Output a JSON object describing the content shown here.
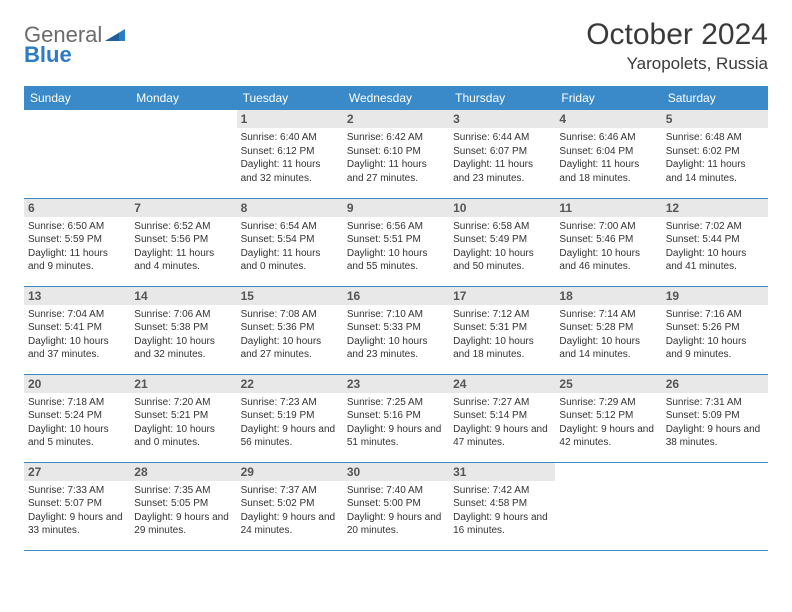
{
  "brand": {
    "part1": "General",
    "part2": "Blue"
  },
  "title": "October 2024",
  "location": "Yaropolets, Russia",
  "colors": {
    "header_bg": "#3a8ac9",
    "header_fg": "#ffffff",
    "daynum_bg": "#e8e8e8",
    "daynum_fg": "#555555",
    "text": "#333333",
    "rule": "#3a8ac9",
    "logo_gray": "#6b6b6b",
    "logo_blue": "#2b7cc4"
  },
  "weekdays": [
    "Sunday",
    "Monday",
    "Tuesday",
    "Wednesday",
    "Thursday",
    "Friday",
    "Saturday"
  ],
  "days": [
    {
      "n": 1,
      "sr": "6:40 AM",
      "ss": "6:12 PM",
      "dl": "11 hours and 32 minutes."
    },
    {
      "n": 2,
      "sr": "6:42 AM",
      "ss": "6:10 PM",
      "dl": "11 hours and 27 minutes."
    },
    {
      "n": 3,
      "sr": "6:44 AM",
      "ss": "6:07 PM",
      "dl": "11 hours and 23 minutes."
    },
    {
      "n": 4,
      "sr": "6:46 AM",
      "ss": "6:04 PM",
      "dl": "11 hours and 18 minutes."
    },
    {
      "n": 5,
      "sr": "6:48 AM",
      "ss": "6:02 PM",
      "dl": "11 hours and 14 minutes."
    },
    {
      "n": 6,
      "sr": "6:50 AM",
      "ss": "5:59 PM",
      "dl": "11 hours and 9 minutes."
    },
    {
      "n": 7,
      "sr": "6:52 AM",
      "ss": "5:56 PM",
      "dl": "11 hours and 4 minutes."
    },
    {
      "n": 8,
      "sr": "6:54 AM",
      "ss": "5:54 PM",
      "dl": "11 hours and 0 minutes."
    },
    {
      "n": 9,
      "sr": "6:56 AM",
      "ss": "5:51 PM",
      "dl": "10 hours and 55 minutes."
    },
    {
      "n": 10,
      "sr": "6:58 AM",
      "ss": "5:49 PM",
      "dl": "10 hours and 50 minutes."
    },
    {
      "n": 11,
      "sr": "7:00 AM",
      "ss": "5:46 PM",
      "dl": "10 hours and 46 minutes."
    },
    {
      "n": 12,
      "sr": "7:02 AM",
      "ss": "5:44 PM",
      "dl": "10 hours and 41 minutes."
    },
    {
      "n": 13,
      "sr": "7:04 AM",
      "ss": "5:41 PM",
      "dl": "10 hours and 37 minutes."
    },
    {
      "n": 14,
      "sr": "7:06 AM",
      "ss": "5:38 PM",
      "dl": "10 hours and 32 minutes."
    },
    {
      "n": 15,
      "sr": "7:08 AM",
      "ss": "5:36 PM",
      "dl": "10 hours and 27 minutes."
    },
    {
      "n": 16,
      "sr": "7:10 AM",
      "ss": "5:33 PM",
      "dl": "10 hours and 23 minutes."
    },
    {
      "n": 17,
      "sr": "7:12 AM",
      "ss": "5:31 PM",
      "dl": "10 hours and 18 minutes."
    },
    {
      "n": 18,
      "sr": "7:14 AM",
      "ss": "5:28 PM",
      "dl": "10 hours and 14 minutes."
    },
    {
      "n": 19,
      "sr": "7:16 AM",
      "ss": "5:26 PM",
      "dl": "10 hours and 9 minutes."
    },
    {
      "n": 20,
      "sr": "7:18 AM",
      "ss": "5:24 PM",
      "dl": "10 hours and 5 minutes."
    },
    {
      "n": 21,
      "sr": "7:20 AM",
      "ss": "5:21 PM",
      "dl": "10 hours and 0 minutes."
    },
    {
      "n": 22,
      "sr": "7:23 AM",
      "ss": "5:19 PM",
      "dl": "9 hours and 56 minutes."
    },
    {
      "n": 23,
      "sr": "7:25 AM",
      "ss": "5:16 PM",
      "dl": "9 hours and 51 minutes."
    },
    {
      "n": 24,
      "sr": "7:27 AM",
      "ss": "5:14 PM",
      "dl": "9 hours and 47 minutes."
    },
    {
      "n": 25,
      "sr": "7:29 AM",
      "ss": "5:12 PM",
      "dl": "9 hours and 42 minutes."
    },
    {
      "n": 26,
      "sr": "7:31 AM",
      "ss": "5:09 PM",
      "dl": "9 hours and 38 minutes."
    },
    {
      "n": 27,
      "sr": "7:33 AM",
      "ss": "5:07 PM",
      "dl": "9 hours and 33 minutes."
    },
    {
      "n": 28,
      "sr": "7:35 AM",
      "ss": "5:05 PM",
      "dl": "9 hours and 29 minutes."
    },
    {
      "n": 29,
      "sr": "7:37 AM",
      "ss": "5:02 PM",
      "dl": "9 hours and 24 minutes."
    },
    {
      "n": 30,
      "sr": "7:40 AM",
      "ss": "5:00 PM",
      "dl": "9 hours and 20 minutes."
    },
    {
      "n": 31,
      "sr": "7:42 AM",
      "ss": "4:58 PM",
      "dl": "9 hours and 16 minutes."
    }
  ],
  "labels": {
    "sunrise": "Sunrise:",
    "sunset": "Sunset:",
    "daylight": "Daylight:"
  },
  "layout": {
    "first_weekday_index": 2,
    "total_days": 31
  }
}
